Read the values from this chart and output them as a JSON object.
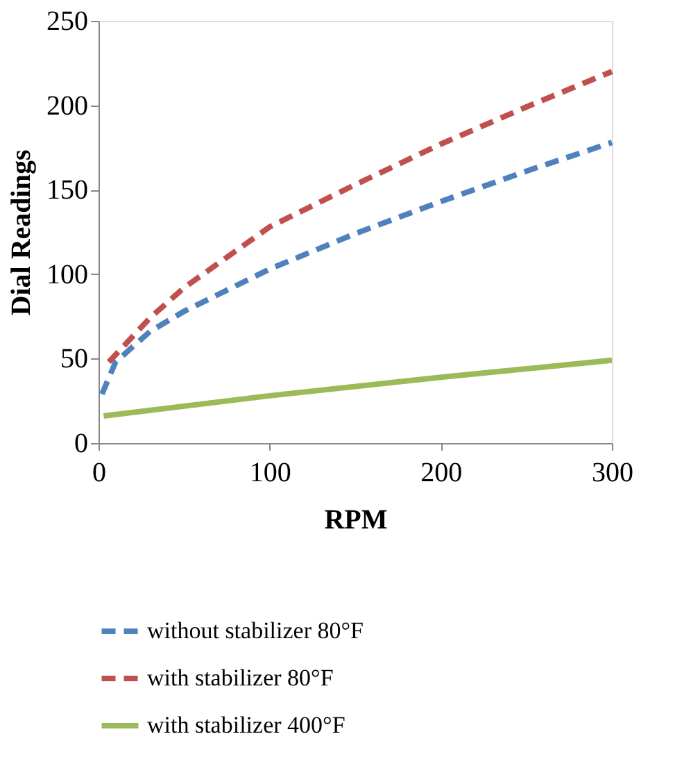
{
  "chart_data": {
    "type": "line",
    "xlabel": "RPM",
    "ylabel": "Dial Readings",
    "xlim": [
      0,
      300
    ],
    "xticks": [
      0,
      100,
      200,
      300
    ],
    "ylim": [
      0,
      250
    ],
    "yticks": [
      0,
      50,
      100,
      150,
      200,
      250
    ],
    "grid": false,
    "legend": "bottom",
    "marker": "none",
    "series": [
      {
        "name": "without stabilizer 80°F",
        "color": "#4f81bd",
        "line_style": "dashed",
        "x": [
          2,
          10,
          30,
          50,
          100,
          150,
          200,
          250,
          300
        ],
        "values": [
          29,
          48,
          66,
          78,
          103,
          124,
          143,
          161,
          178
        ]
      },
      {
        "name": "with stabilizer 80°F",
        "color": "#c0504d",
        "line_style": "dashed",
        "x": [
          6,
          30,
          50,
          100,
          150,
          200,
          250,
          300
        ],
        "values": [
          48,
          74,
          92,
          128,
          153,
          177,
          199,
          220
        ]
      },
      {
        "name": "with stabilizer 400°F",
        "color": "#9bbb59",
        "line_style": "solid",
        "x": [
          3,
          100,
          200,
          300
        ],
        "values": [
          16,
          28,
          39,
          49
        ]
      }
    ]
  }
}
